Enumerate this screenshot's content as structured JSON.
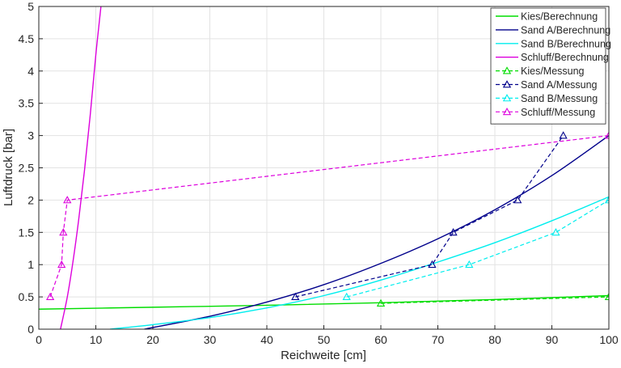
{
  "chart_data": {
    "type": "line",
    "xlabel": "Reichweite [cm]",
    "ylabel": "Luftdruck [bar]",
    "xlim": [
      0,
      100
    ],
    "ylim": [
      0,
      5
    ],
    "xticks": [
      "0",
      "10",
      "20",
      "30",
      "40",
      "50",
      "60",
      "70",
      "80",
      "90",
      "100"
    ],
    "yticks": [
      "0",
      "0.5",
      "1",
      "1.5",
      "2",
      "2.5",
      "3",
      "3.5",
      "4",
      "4.5",
      "5"
    ],
    "grid": true,
    "legend_position": "top-right",
    "series": [
      {
        "name": "Kies/Berechnung",
        "style": "solid",
        "color": "#00dd00",
        "x": [
          0,
          20,
          40,
          60,
          80,
          100
        ],
        "y": [
          0.31,
          0.34,
          0.37,
          0.41,
          0.46,
          0.52
        ]
      },
      {
        "name": "Sand A/Berechnung",
        "style": "solid",
        "color": "#00008b",
        "x": [
          18.5,
          30,
          40,
          50,
          60,
          70,
          80,
          90,
          100
        ],
        "y": [
          0.0,
          0.2,
          0.42,
          0.69,
          1.02,
          1.4,
          1.85,
          2.38,
          3.0
        ]
      },
      {
        "name": "Sand B/Berechnung",
        "style": "solid",
        "color": "#00eeee",
        "x": [
          12.5,
          20,
          30,
          40,
          50,
          60,
          70,
          80,
          90,
          100
        ],
        "y": [
          0.0,
          0.07,
          0.18,
          0.33,
          0.52,
          0.76,
          1.04,
          1.34,
          1.68,
          2.05
        ]
      },
      {
        "name": "Schluff/Berechnung",
        "style": "solid",
        "color": "#dd00dd",
        "x": [
          3.8,
          5,
          6,
          7,
          8,
          9,
          10,
          10.9
        ],
        "y": [
          0.0,
          0.5,
          1.05,
          1.7,
          2.45,
          3.3,
          4.25,
          5.0
        ]
      },
      {
        "name": "Kies/Messung",
        "style": "dashed",
        "marker": "triangle",
        "color": "#00dd00",
        "x": [
          60,
          100
        ],
        "y": [
          0.4,
          0.5
        ]
      },
      {
        "name": "Sand A/Messung",
        "style": "dashed",
        "marker": "triangle",
        "color": "#00008b",
        "x": [
          45,
          69,
          72.7,
          84,
          92
        ],
        "y": [
          0.5,
          1.0,
          1.5,
          2.0,
          3.0
        ]
      },
      {
        "name": "Sand B/Messung",
        "style": "dashed",
        "marker": "triangle",
        "color": "#00eeee",
        "x": [
          54,
          75.5,
          90.7,
          100
        ],
        "y": [
          0.5,
          1.0,
          1.5,
          2.0
        ]
      },
      {
        "name": "Schluff/Messung",
        "style": "dashed",
        "marker": "triangle",
        "color": "#dd00dd",
        "x": [
          2,
          4,
          4.3,
          5,
          100
        ],
        "y": [
          0.5,
          1.0,
          1.5,
          2.0,
          3.0
        ]
      }
    ]
  }
}
